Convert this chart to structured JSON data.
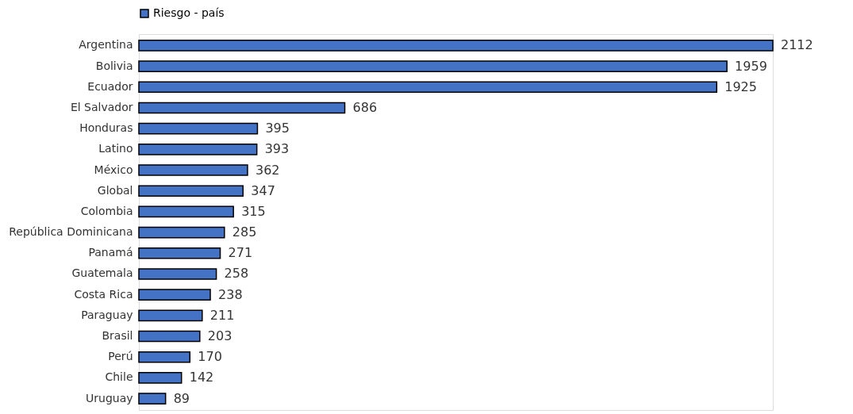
{
  "chart_data": {
    "type": "bar",
    "orientation": "horizontal",
    "categories": [
      "Argentina",
      "Bolivia",
      "Ecuador",
      "El Salvador",
      "Honduras",
      "Latino",
      "México",
      "Global",
      "Colombia",
      "República Dominicana",
      "Panamá",
      "Guatemala",
      "Costa Rica",
      "Paraguay",
      "Brasil",
      "Perú",
      "Chile",
      "Uruguay"
    ],
    "series": [
      {
        "name": "Riesgo - país",
        "color": "#4472c4",
        "values": [
          2112,
          1959,
          1925,
          686,
          395,
          393,
          362,
          347,
          315,
          285,
          271,
          258,
          238,
          211,
          203,
          170,
          142,
          89
        ]
      }
    ],
    "data_labels": true,
    "legend": "top",
    "grid": false
  }
}
